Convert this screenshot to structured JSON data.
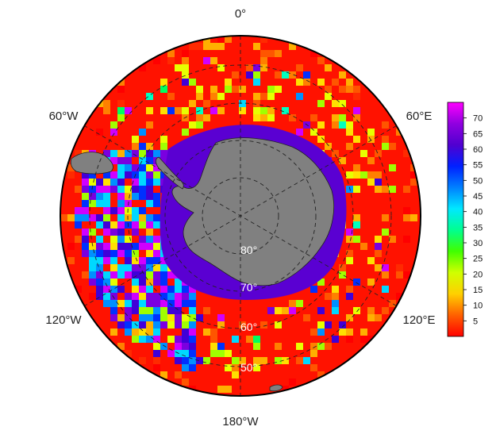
{
  "map": {
    "projection": "south-polar-stereographic",
    "longitude_labels": [
      {
        "id": "0",
        "text": "0°"
      },
      {
        "id": "60E",
        "text": "60°E"
      },
      {
        "id": "120E",
        "text": "120°E"
      },
      {
        "id": "180W",
        "text": "180°W"
      },
      {
        "id": "120W",
        "text": "120°W"
      },
      {
        "id": "60W",
        "text": "60°W"
      }
    ],
    "latitude_labels": [
      {
        "id": "80",
        "text": "80°"
      },
      {
        "id": "70",
        "text": "70°"
      },
      {
        "id": "60",
        "text": "60°"
      },
      {
        "id": "50",
        "text": "50°"
      }
    ],
    "land_color": "#808080",
    "ice_zone_color": "#5a00d2"
  },
  "colorbar": {
    "min": 0,
    "max": 75,
    "ticks": [
      5,
      10,
      15,
      20,
      25,
      30,
      35,
      40,
      45,
      50,
      55,
      60,
      65,
      70
    ],
    "tick_labels": [
      "5",
      "10",
      "15",
      "20",
      "25",
      "30",
      "35",
      "40",
      "45",
      "50",
      "55",
      "60",
      "65",
      "70"
    ],
    "colormap": [
      "#ff0000",
      "#ff6000",
      "#ffd000",
      "#d0ff00",
      "#40ff00",
      "#00ff90",
      "#00e8ff",
      "#0080ff",
      "#0020ff",
      "#5000d0",
      "#9000e0",
      "#ff00ff"
    ]
  }
}
